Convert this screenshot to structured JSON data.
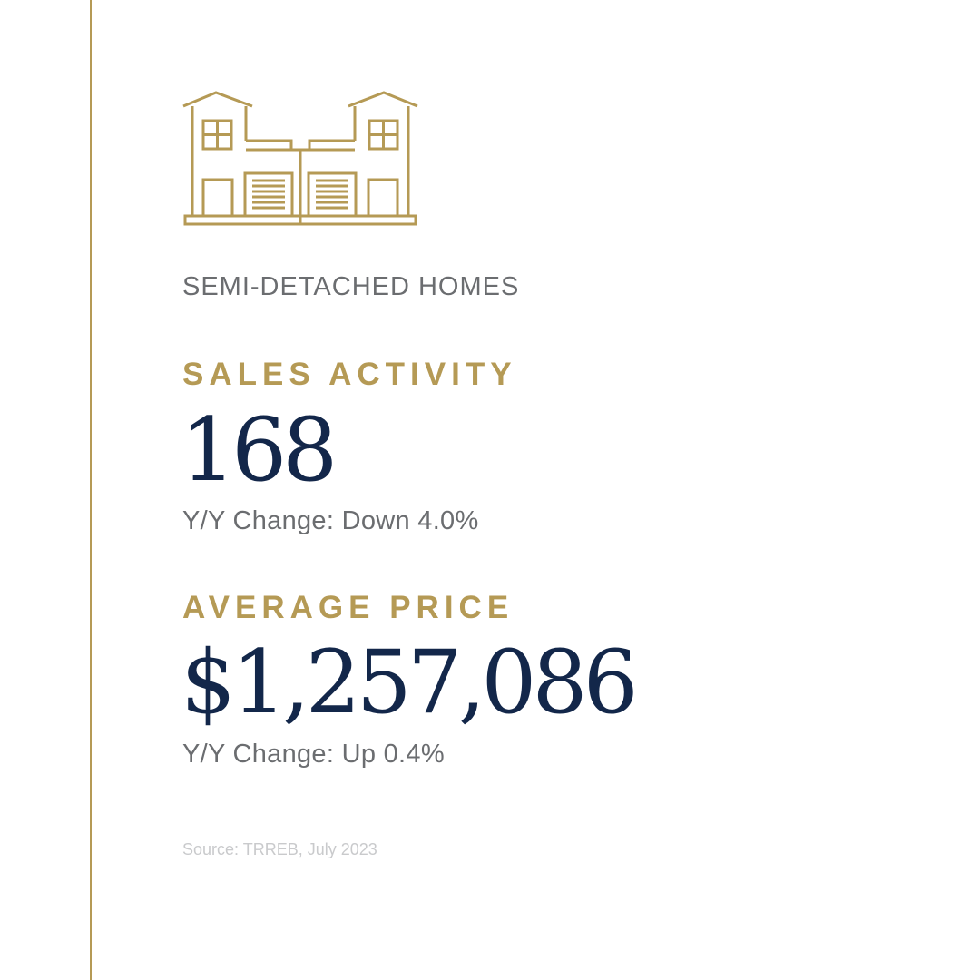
{
  "colors": {
    "accent": "#b59a55",
    "navy": "#13274a",
    "gray": "#6b6d70",
    "source_gray": "#c9cacc"
  },
  "icon": "semi-detached-house-icon",
  "category": "SEMI-DETACHED HOMES",
  "sales": {
    "heading": "SALES ACTIVITY",
    "value": "168",
    "change": "Y/Y Change: Down 4.0%"
  },
  "price": {
    "heading": "AVERAGE PRICE",
    "value": "$1,257,086",
    "change": "Y/Y Change: Up 0.4%"
  },
  "source": "Source: TRREB, July 2023"
}
